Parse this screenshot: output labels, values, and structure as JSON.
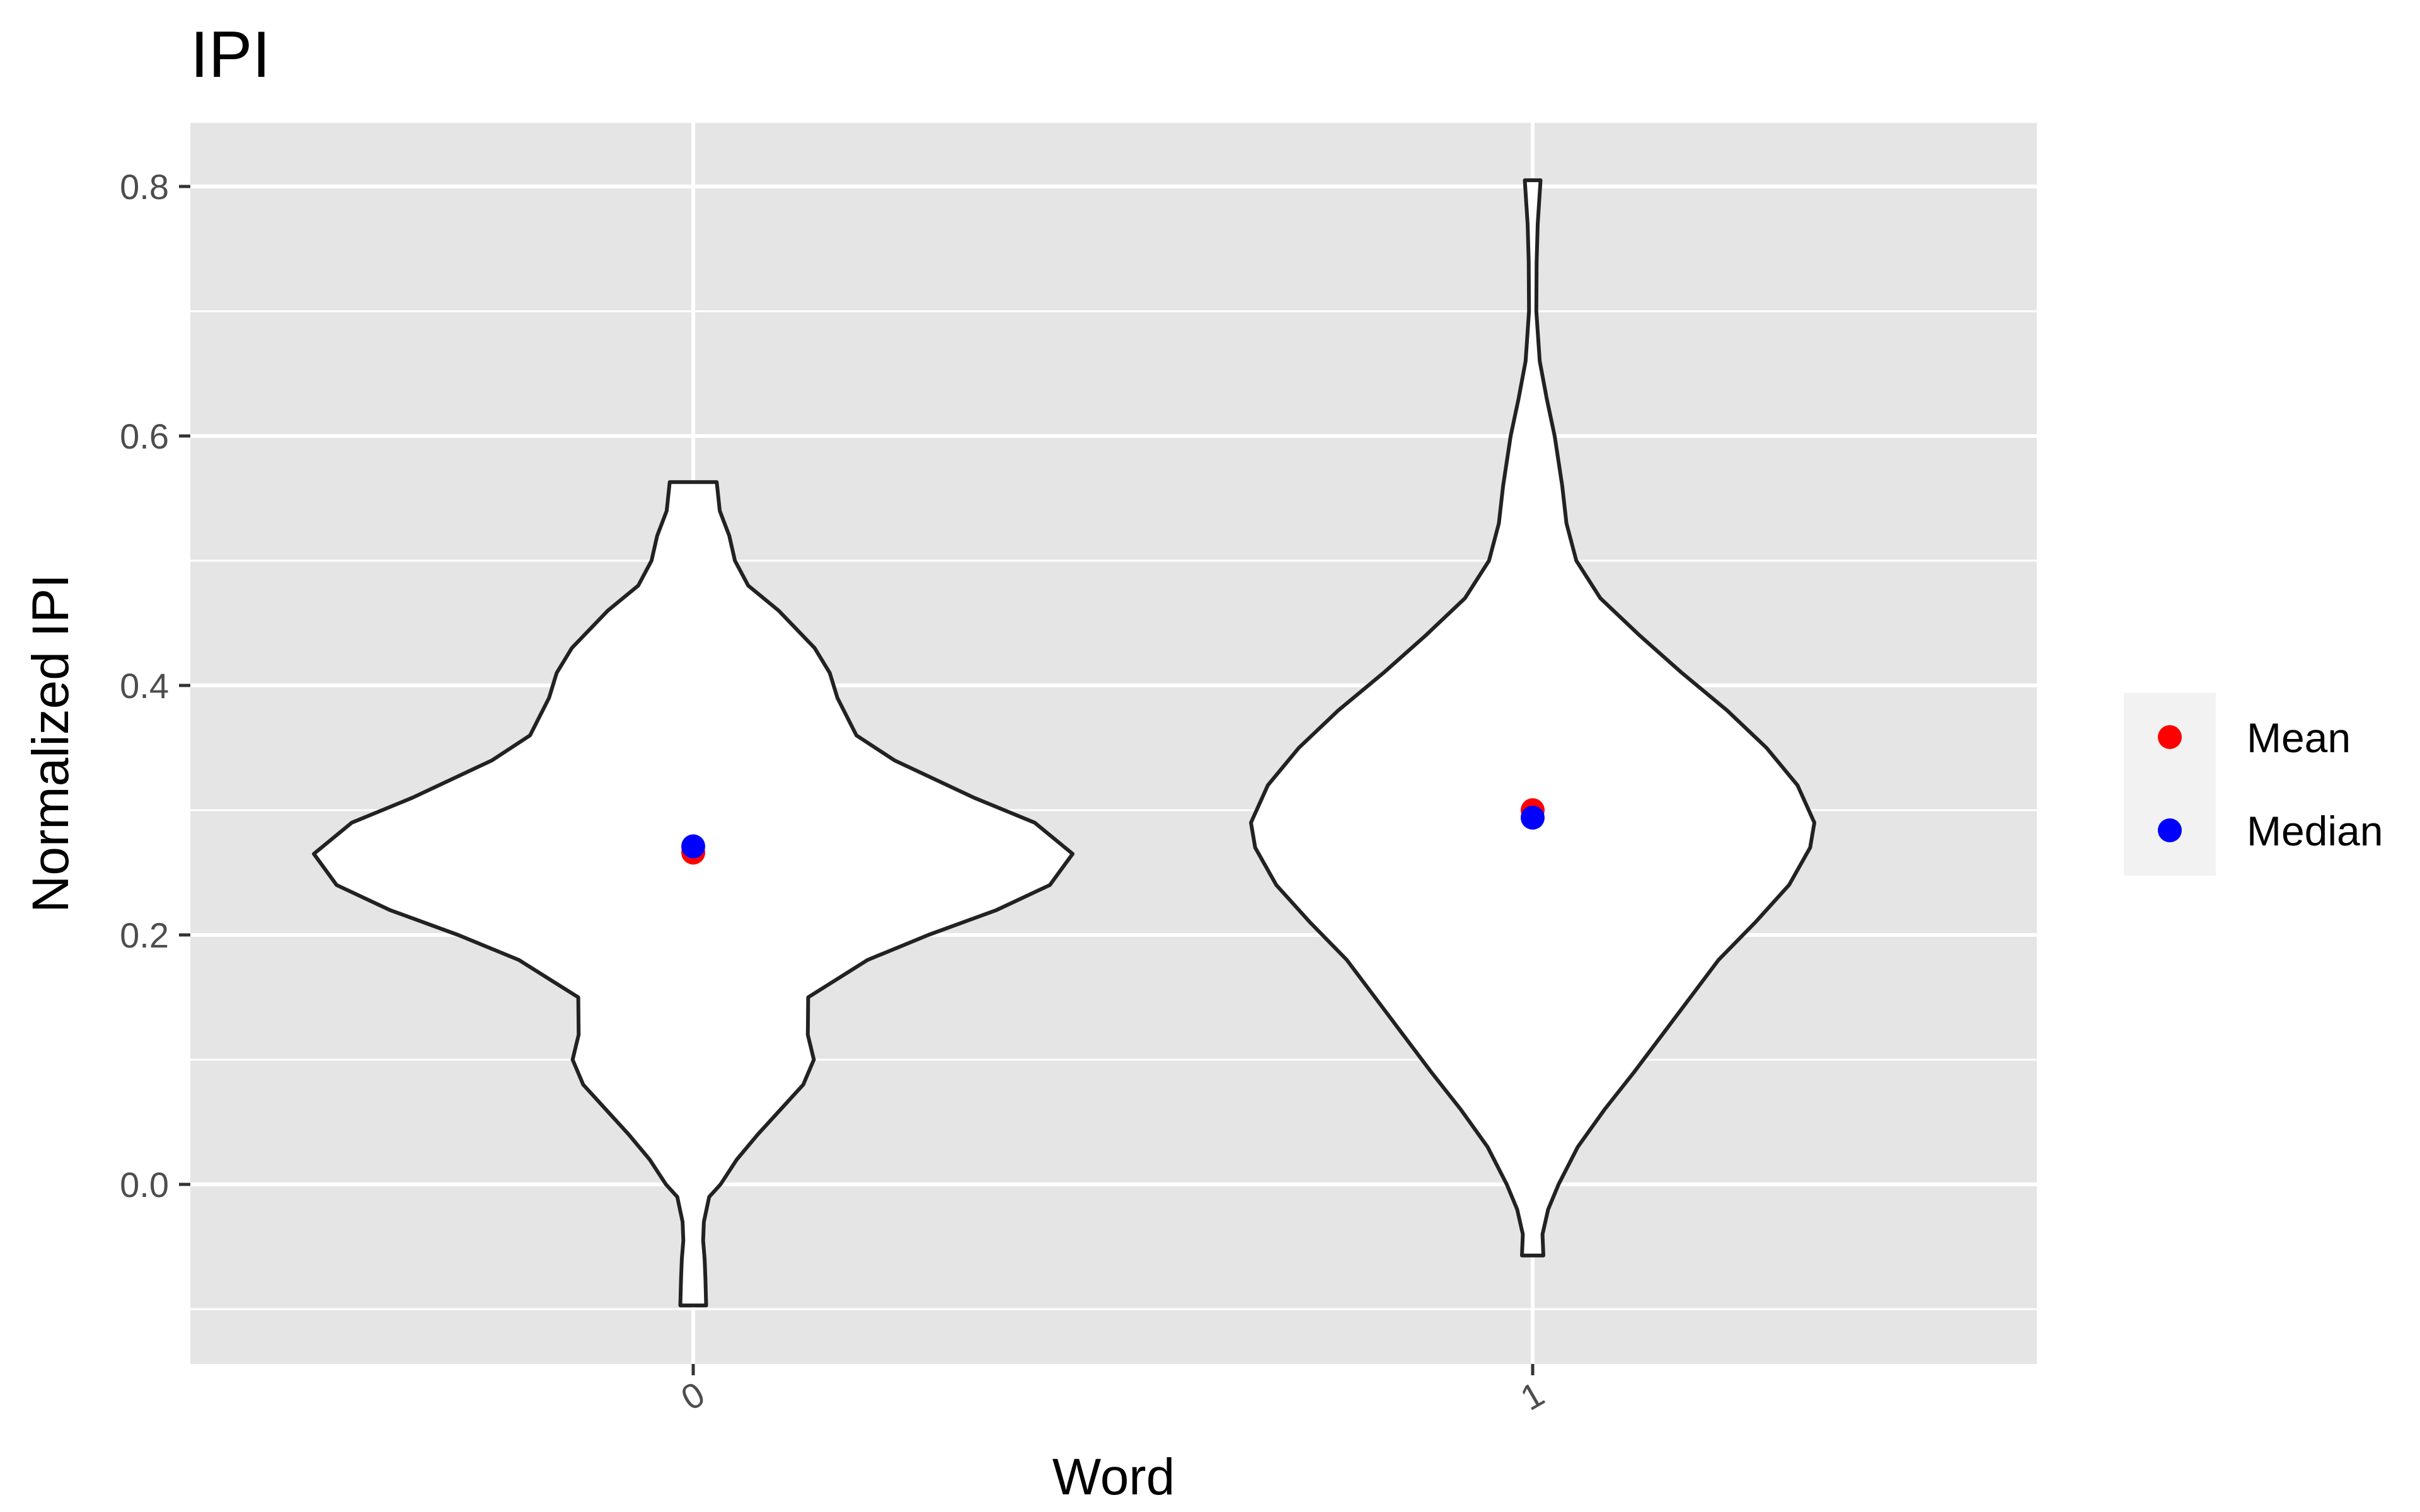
{
  "chart_data": {
    "type": "violin",
    "title": "IPI",
    "xlabel": "Word",
    "ylabel": "Normalized IPI",
    "categories": [
      "0",
      "1"
    ],
    "x_tick_labels": [
      "0",
      "1"
    ],
    "y_ticks": [
      0.0,
      0.2,
      0.4,
      0.6,
      0.8
    ],
    "y_tick_labels": [
      "0.0",
      "0.2",
      "0.4",
      "0.6",
      "0.8"
    ],
    "ylim": [
      -0.14,
      0.855
    ],
    "grid": true,
    "panel_background": "gray",
    "legend": {
      "position": "right",
      "entries": [
        {
          "name": "Mean",
          "color": "#ff0000"
        },
        {
          "name": "Median",
          "color": "#0000ff"
        }
      ]
    },
    "violins": [
      {
        "category": "0",
        "y_min": -0.097,
        "y_max": 0.563,
        "density_profile": [
          [
            -0.097,
            0.034
          ],
          [
            -0.075,
            0.032
          ],
          [
            -0.06,
            0.03
          ],
          [
            -0.045,
            0.026
          ],
          [
            -0.03,
            0.028
          ],
          [
            -0.01,
            0.042
          ],
          [
            0.0,
            0.072
          ],
          [
            0.02,
            0.115
          ],
          [
            0.04,
            0.17
          ],
          [
            0.06,
            0.23
          ],
          [
            0.08,
            0.29
          ],
          [
            0.1,
            0.318
          ],
          [
            0.12,
            0.302
          ],
          [
            0.15,
            0.303
          ],
          [
            0.18,
            0.46
          ],
          [
            0.2,
            0.62
          ],
          [
            0.22,
            0.8
          ],
          [
            0.24,
            0.94
          ],
          [
            0.265,
            1.0
          ],
          [
            0.29,
            0.9
          ],
          [
            0.31,
            0.74
          ],
          [
            0.34,
            0.53
          ],
          [
            0.36,
            0.43
          ],
          [
            0.39,
            0.38
          ],
          [
            0.41,
            0.36
          ],
          [
            0.43,
            0.32
          ],
          [
            0.46,
            0.225
          ],
          [
            0.48,
            0.145
          ],
          [
            0.5,
            0.11
          ],
          [
            0.52,
            0.095
          ],
          [
            0.54,
            0.07
          ],
          [
            0.563,
            0.062
          ]
        ],
        "mean": 0.266,
        "median": 0.271
      },
      {
        "category": "1",
        "y_min": -0.057,
        "y_max": 0.805,
        "density_profile": [
          [
            -0.057,
            0.038
          ],
          [
            -0.04,
            0.035
          ],
          [
            -0.02,
            0.055
          ],
          [
            0.0,
            0.092
          ],
          [
            0.03,
            0.16
          ],
          [
            0.06,
            0.255
          ],
          [
            0.09,
            0.36
          ],
          [
            0.12,
            0.46
          ],
          [
            0.15,
            0.56
          ],
          [
            0.18,
            0.66
          ],
          [
            0.21,
            0.79
          ],
          [
            0.24,
            0.91
          ],
          [
            0.27,
            0.985
          ],
          [
            0.29,
            1.0
          ],
          [
            0.32,
            0.94
          ],
          [
            0.35,
            0.83
          ],
          [
            0.38,
            0.69
          ],
          [
            0.41,
            0.53
          ],
          [
            0.44,
            0.38
          ],
          [
            0.47,
            0.24
          ],
          [
            0.5,
            0.155
          ],
          [
            0.53,
            0.12
          ],
          [
            0.56,
            0.105
          ],
          [
            0.6,
            0.078
          ],
          [
            0.63,
            0.05
          ],
          [
            0.66,
            0.025
          ],
          [
            0.7,
            0.013
          ],
          [
            0.74,
            0.014
          ],
          [
            0.77,
            0.018
          ],
          [
            0.805,
            0.028
          ]
        ],
        "mean": 0.3,
        "median": 0.294
      }
    ]
  }
}
